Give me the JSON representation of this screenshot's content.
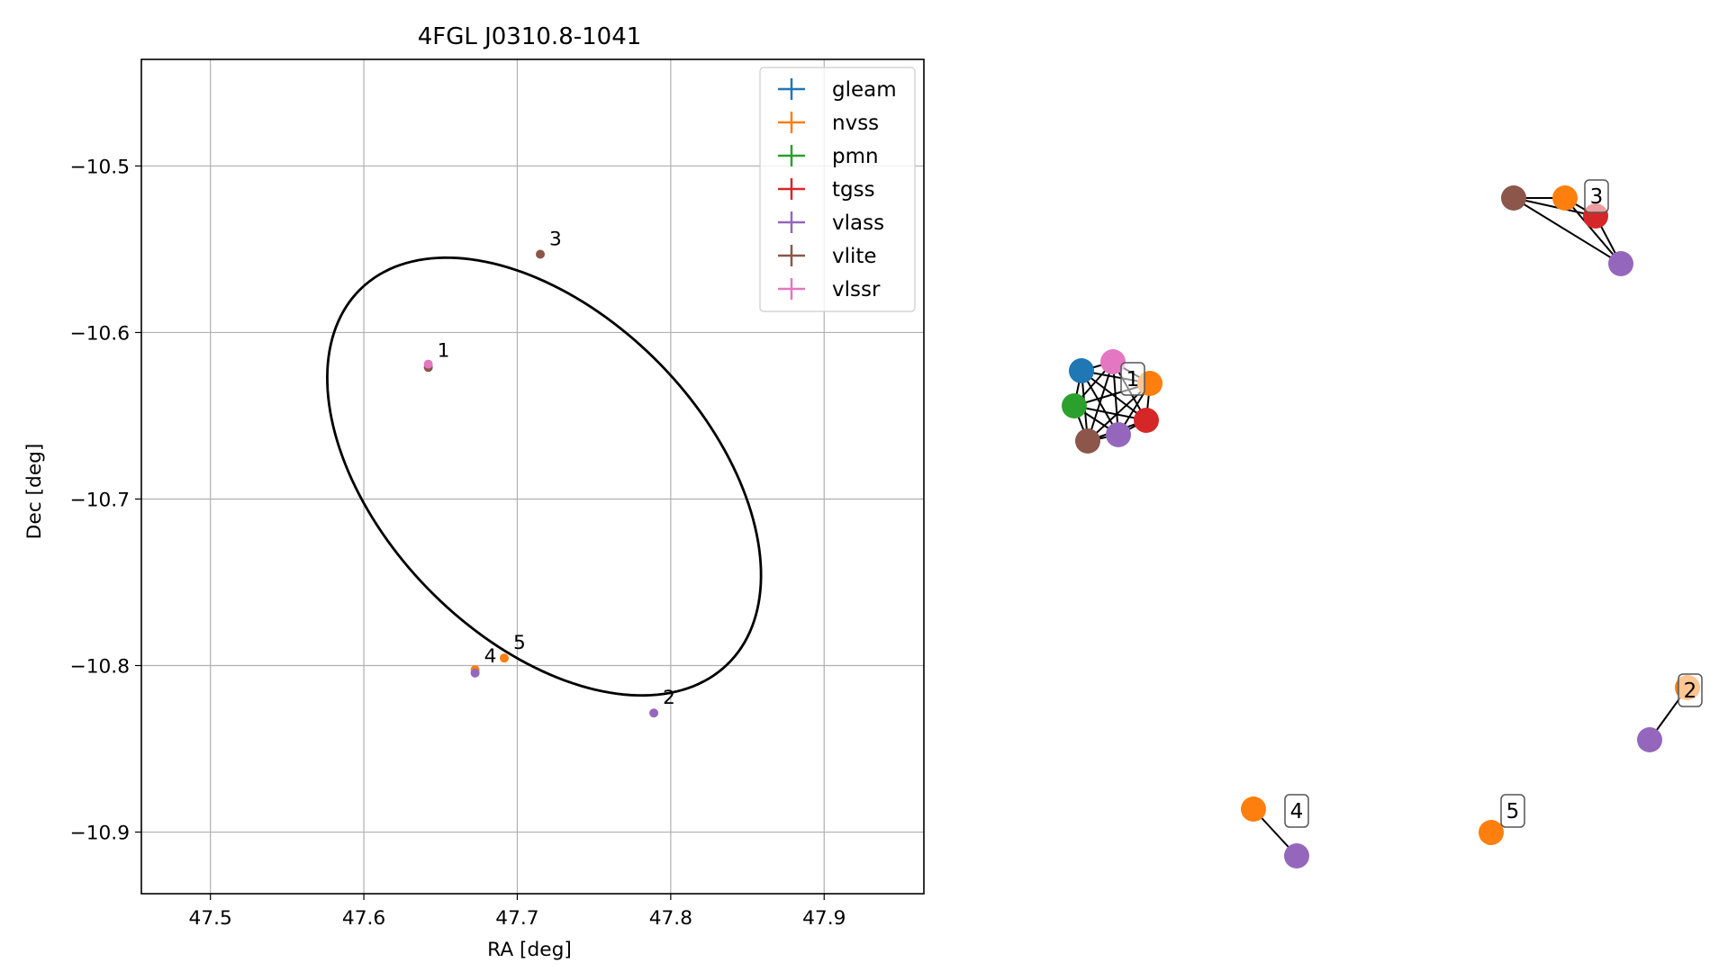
{
  "chart_data": [
    {
      "type": "scatter",
      "title": "4FGL J0310.8-1041",
      "xlabel": "RA [deg]",
      "ylabel": "Dec [deg]",
      "xlim": [
        47.455,
        47.965
      ],
      "ylim": [
        -10.937,
        -10.436
      ],
      "xticks": [
        47.5,
        47.6,
        47.7,
        47.8,
        47.9
      ],
      "yticks": [
        -10.5,
        -10.6,
        -10.7,
        -10.8,
        -10.9
      ],
      "xtick_labels": [
        "47.5",
        "47.6",
        "47.7",
        "47.8",
        "47.9"
      ],
      "ytick_labels": [
        "−10.5",
        "−10.6",
        "−10.7",
        "−10.8",
        "−10.9"
      ],
      "grid": true,
      "legend_position": "top-right",
      "series": [
        {
          "name": "gleam",
          "color": "#1f77b4",
          "points": []
        },
        {
          "name": "nvss",
          "color": "#ff7f0e",
          "points": [
            {
              "x": 47.6725,
              "y": -10.8025
            },
            {
              "x": 47.6915,
              "y": -10.7955
            }
          ]
        },
        {
          "name": "pmn",
          "color": "#2ca02c",
          "points": []
        },
        {
          "name": "tgss",
          "color": "#d62728",
          "points": []
        },
        {
          "name": "vlass",
          "color": "#9467bd",
          "points": [
            {
              "x": 47.6725,
              "y": -10.8045
            },
            {
              "x": 47.789,
              "y": -10.8285
            }
          ]
        },
        {
          "name": "vlite",
          "color": "#8c564b",
          "points": [
            {
              "x": 47.642,
              "y": -10.621
            },
            {
              "x": 47.715,
              "y": -10.553
            }
          ]
        },
        {
          "name": "vlssr",
          "color": "#e377c2",
          "points": [
            {
              "x": 47.642,
              "y": -10.619
            }
          ]
        }
      ],
      "ellipse": {
        "center_ra": 47.7175,
        "center_dec": -10.6865,
        "semi_major_deg": 0.163,
        "semi_minor_deg": 0.1,
        "position_angle_deg": 131.5,
        "color": "#000000"
      },
      "source_labels": [
        {
          "text": "1",
          "x": 47.642,
          "y": -10.62
        },
        {
          "text": "3",
          "x": 47.715,
          "y": -10.553
        },
        {
          "text": "4",
          "x": 47.6725,
          "y": -10.8035
        },
        {
          "text": "5",
          "x": 47.6915,
          "y": -10.7955
        },
        {
          "text": "2",
          "x": 47.789,
          "y": -10.8285
        }
      ]
    },
    {
      "type": "graph",
      "groups": [
        {
          "label": "1",
          "nodes": [
            "gleam",
            "nvss",
            "pmn",
            "tgss",
            "vlass",
            "vlite",
            "vlssr"
          ]
        },
        {
          "label": "3",
          "nodes": [
            "vlite",
            "nvss",
            "tgss",
            "vlass"
          ]
        },
        {
          "label": "2",
          "nodes": [
            "nvss",
            "vlass"
          ]
        },
        {
          "label": "4",
          "nodes": [
            "nvss",
            "vlass"
          ]
        },
        {
          "label": "5",
          "nodes": [
            "nvss"
          ]
        }
      ]
    }
  ]
}
